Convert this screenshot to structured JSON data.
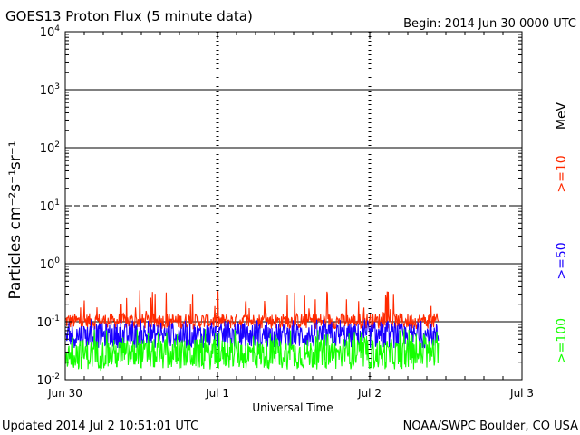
{
  "chart_data": {
    "type": "line",
    "title": "GOES13 Proton Flux (5 minute data)",
    "begin_label": "Begin: 2014 Jun 30 0000 UTC",
    "xlabel": "Universal Time",
    "ylabel": "Particles cm⁻²s⁻¹sr⁻¹",
    "x_ticks": [
      "Jun 30",
      "Jul 1",
      "Jul 2",
      "Jul 3"
    ],
    "x_range_days": [
      0,
      3
    ],
    "y_scale": "log",
    "y_range": [
      0.01,
      10000
    ],
    "y_ticks": [
      {
        "base": "10",
        "exp": "-2"
      },
      {
        "base": "10",
        "exp": "-1"
      },
      {
        "base": "10",
        "exp": "0"
      },
      {
        "base": "10",
        "exp": "1"
      },
      {
        "base": "10",
        "exp": "2"
      },
      {
        "base": "10",
        "exp": "3"
      },
      {
        "base": "10",
        "exp": "4"
      }
    ],
    "dashed_threshold_y": 10,
    "data_end_day": 2.45,
    "series": [
      {
        "name": ">=10",
        "color": "#ff2a00",
        "typical": [
          0.075,
          0.14
        ],
        "spike_max": 0.35
      },
      {
        "name": ">=50",
        "color": "#1a00ff",
        "typical": [
          0.035,
          0.095
        ],
        "spike_max": 0.11
      },
      {
        "name": ">=100",
        "color": "#14ff00",
        "typical": [
          0.015,
          0.05
        ],
        "spike_max": 0.075
      }
    ],
    "legend": {
      "unit": "MeV",
      "placement": "right"
    }
  },
  "footer": {
    "updated": "Updated 2014 Jul  2 10:51:01 UTC",
    "credit": "NOAA/SWPC Boulder, CO USA"
  }
}
